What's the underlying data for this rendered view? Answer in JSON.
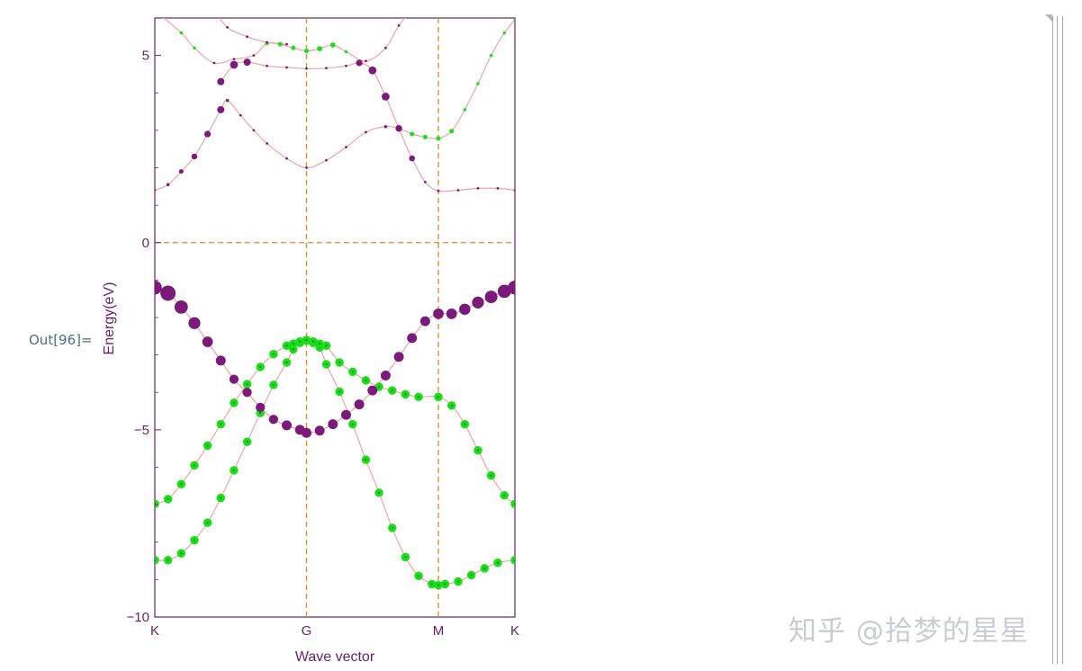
{
  "cell": {
    "output_label": "Out[96]="
  },
  "watermark": "知乎 @拾梦的星星",
  "colors": {
    "purple": "#7b1a7b",
    "green": "#16e016",
    "curve": "#f0a3a3",
    "guide": "#e08a2a",
    "axis": "#6a1e6a"
  },
  "chart_data": {
    "type": "scatter",
    "title": "",
    "xlabel": "Wave vector",
    "ylabel": "Energy(eV)",
    "ylim": [
      -10,
      6
    ],
    "xlim": [
      0,
      2.73
    ],
    "x_ticks": [
      {
        "x": 0,
        "label": "K"
      },
      {
        "x": 1.15,
        "label": "G"
      },
      {
        "x": 2.15,
        "label": "M"
      },
      {
        "x": 2.73,
        "label": "K"
      }
    ],
    "y_ticks": [
      {
        "y": 5,
        "label": "5"
      },
      {
        "y": 0,
        "label": "0"
      },
      {
        "y": -5,
        "label": "−5"
      },
      {
        "y": -10,
        "label": "−10"
      }
    ],
    "guides": {
      "vertical_x": [
        1.15,
        2.15
      ],
      "horizontal_y": [
        0
      ]
    },
    "grid": false,
    "legend": "none",
    "bands": [
      {
        "points": [
          [
            0,
            -8.48
          ],
          [
            0.1,
            -8.48
          ],
          [
            0.2,
            -8.3
          ],
          [
            0.3,
            -7.95
          ],
          [
            0.4,
            -7.48
          ],
          [
            0.5,
            -6.82
          ],
          [
            0.6,
            -6.08
          ],
          [
            0.7,
            -5.32
          ],
          [
            0.8,
            -4.55
          ],
          [
            0.9,
            -3.8
          ],
          [
            1.0,
            -3.2
          ],
          [
            1.05,
            -2.85
          ],
          [
            1.1,
            -2.68
          ],
          [
            1.15,
            -2.62
          ],
          [
            1.2,
            -2.68
          ],
          [
            1.25,
            -2.8
          ],
          [
            1.3,
            -3.25
          ],
          [
            1.4,
            -3.98
          ],
          [
            1.5,
            -4.85
          ],
          [
            1.6,
            -5.8
          ],
          [
            1.7,
            -6.68
          ],
          [
            1.8,
            -7.62
          ],
          [
            1.9,
            -8.4
          ],
          [
            2.0,
            -8.9
          ],
          [
            2.1,
            -9.12
          ],
          [
            2.15,
            -9.15
          ],
          [
            2.2,
            -9.12
          ],
          [
            2.3,
            -9.05
          ],
          [
            2.4,
            -8.88
          ],
          [
            2.5,
            -8.7
          ],
          [
            2.6,
            -8.55
          ],
          [
            2.73,
            -8.48
          ]
        ],
        "weights": [
          0.5,
          0.5,
          0.5,
          0.5,
          0.5,
          0.5,
          0.5,
          0.5,
          0.5,
          0.5,
          0.5,
          0.5,
          0.5,
          0.5,
          0.5,
          0.5,
          0.5,
          0.5,
          0.5,
          0.5,
          0.5,
          0.5,
          0.5,
          0.5,
          0.5,
          0.5,
          0.5,
          0.5,
          0.5,
          0.5,
          0.5,
          0.5
        ],
        "colors": [
          "g",
          "g",
          "g",
          "g",
          "g",
          "g",
          "g",
          "g",
          "g",
          "g",
          "g",
          "g",
          "g",
          "g",
          "g",
          "g",
          "g",
          "g",
          "g",
          "g",
          "g",
          "g",
          "g",
          "g",
          "g",
          "g",
          "g",
          "g",
          "g",
          "g",
          "g",
          "g"
        ]
      },
      {
        "points": [
          [
            0,
            -6.98
          ],
          [
            0.1,
            -6.85
          ],
          [
            0.2,
            -6.45
          ],
          [
            0.3,
            -5.95
          ],
          [
            0.4,
            -5.42
          ],
          [
            0.5,
            -4.85
          ],
          [
            0.6,
            -4.28
          ],
          [
            0.7,
            -3.78
          ],
          [
            0.8,
            -3.32
          ],
          [
            0.9,
            -2.98
          ],
          [
            1.0,
            -2.75
          ],
          [
            1.05,
            -2.7
          ],
          [
            1.1,
            -2.64
          ],
          [
            1.15,
            -2.6
          ],
          [
            1.2,
            -2.64
          ],
          [
            1.25,
            -2.7
          ],
          [
            1.3,
            -2.75
          ],
          [
            1.4,
            -3.2
          ],
          [
            1.5,
            -3.45
          ],
          [
            1.6,
            -3.68
          ],
          [
            1.7,
            -3.85
          ],
          [
            1.8,
            -3.95
          ],
          [
            1.9,
            -4.05
          ],
          [
            2.0,
            -4.12
          ],
          [
            2.15,
            -4.12
          ],
          [
            2.25,
            -4.35
          ],
          [
            2.35,
            -4.85
          ],
          [
            2.45,
            -5.55
          ],
          [
            2.55,
            -6.22
          ],
          [
            2.65,
            -6.75
          ],
          [
            2.73,
            -6.98
          ]
        ],
        "weights": [
          0.5,
          0.5,
          0.5,
          0.5,
          0.5,
          0.5,
          0.5,
          0.5,
          0.5,
          0.5,
          0.5,
          0.5,
          0.5,
          0.5,
          0.5,
          0.5,
          0.5,
          0.5,
          0.5,
          0.5,
          0.5,
          0.5,
          0.5,
          0.5,
          0.5,
          0.5,
          0.5,
          0.5,
          0.5,
          0.5,
          0.5
        ],
        "colors": [
          "g",
          "g",
          "g",
          "g",
          "g",
          "g",
          "g",
          "g",
          "g",
          "g",
          "g",
          "g",
          "g",
          "g",
          "g",
          "g",
          "g",
          "g",
          "g",
          "g",
          "g",
          "g",
          "g",
          "g",
          "g",
          "g",
          "g",
          "g",
          "g",
          "g",
          "g"
        ]
      },
      {
        "points": [
          [
            0,
            -1.2
          ],
          [
            0.1,
            -1.35
          ],
          [
            0.2,
            -1.72
          ],
          [
            0.3,
            -2.15
          ],
          [
            0.4,
            -2.65
          ],
          [
            0.5,
            -3.15
          ],
          [
            0.6,
            -3.65
          ],
          [
            0.7,
            -4.0
          ],
          [
            0.8,
            -4.4
          ],
          [
            0.9,
            -4.72
          ],
          [
            1.0,
            -4.88
          ],
          [
            1.1,
            -5.0
          ],
          [
            1.15,
            -5.08
          ],
          [
            1.25,
            -5.02
          ],
          [
            1.35,
            -4.85
          ],
          [
            1.45,
            -4.6
          ],
          [
            1.55,
            -4.32
          ],
          [
            1.65,
            -3.95
          ],
          [
            1.75,
            -3.55
          ],
          [
            1.85,
            -3.05
          ],
          [
            1.95,
            -2.55
          ],
          [
            2.05,
            -2.1
          ],
          [
            2.15,
            -1.9
          ],
          [
            2.25,
            -1.9
          ],
          [
            2.35,
            -1.78
          ],
          [
            2.45,
            -1.6
          ],
          [
            2.55,
            -1.45
          ],
          [
            2.65,
            -1.3
          ],
          [
            2.73,
            -1.2
          ]
        ],
        "weights": [
          0.9,
          1.0,
          0.85,
          0.75,
          0.65,
          0.6,
          0.55,
          0.55,
          0.55,
          0.55,
          0.6,
          0.6,
          0.6,
          0.6,
          0.6,
          0.6,
          0.6,
          0.6,
          0.6,
          0.6,
          0.6,
          0.6,
          0.65,
          0.65,
          0.7,
          0.75,
          0.8,
          0.85,
          0.9
        ],
        "colors": [
          "p",
          "p",
          "p",
          "p",
          "p",
          "p",
          "p",
          "p",
          "p",
          "p",
          "p",
          "p",
          "p",
          "p",
          "p",
          "p",
          "p",
          "p",
          "p",
          "p",
          "p",
          "p",
          "p",
          "p",
          "p",
          "p",
          "p",
          "p",
          "p"
        ]
      },
      {
        "points": [
          [
            0,
            1.4
          ],
          [
            0.1,
            1.55
          ],
          [
            0.2,
            1.9
          ],
          [
            0.3,
            2.3
          ],
          [
            0.4,
            2.9
          ],
          [
            0.5,
            3.55
          ],
          [
            0.55,
            3.8
          ],
          [
            0.65,
            3.4
          ],
          [
            0.75,
            3.0
          ],
          [
            0.85,
            2.65
          ],
          [
            1.0,
            2.25
          ],
          [
            1.15,
            2.0
          ],
          [
            1.3,
            2.2
          ],
          [
            1.45,
            2.55
          ],
          [
            1.6,
            2.95
          ],
          [
            1.75,
            3.1
          ],
          [
            1.85,
            3.05
          ],
          [
            1.95,
            2.9
          ],
          [
            2.05,
            2.82
          ],
          [
            2.15,
            2.78
          ],
          [
            2.25,
            2.98
          ],
          [
            2.35,
            3.55
          ],
          [
            2.45,
            4.25
          ],
          [
            2.55,
            5.0
          ],
          [
            2.65,
            5.6
          ],
          [
            2.73,
            5.95
          ]
        ],
        "weights": [
          0.05,
          0.1,
          0.2,
          0.3,
          0.35,
          0.4,
          0.1,
          0.05,
          0.05,
          0.05,
          0.05,
          0.05,
          0.05,
          0.05,
          0.05,
          0.1,
          0.35,
          0.2,
          0.2,
          0.2,
          0.2,
          0.1,
          0.1,
          0.1,
          0.1,
          0.1
        ],
        "colors": [
          "p",
          "p",
          "p",
          "p",
          "p",
          "p",
          "p",
          "p",
          "p",
          "p",
          "p",
          "p",
          "p",
          "p",
          "p",
          "p",
          "p",
          "g",
          "g",
          "g",
          "g",
          "g",
          "g",
          "g",
          "g",
          "g"
        ]
      },
      {
        "points": [
          [
            0.5,
            4.3
          ],
          [
            0.6,
            4.75
          ],
          [
            0.7,
            4.82
          ],
          [
            0.85,
            4.72
          ],
          [
            1.0,
            4.68
          ],
          [
            1.15,
            4.65
          ],
          [
            1.3,
            4.66
          ],
          [
            1.45,
            4.72
          ],
          [
            1.55,
            4.8
          ],
          [
            1.65,
            4.6
          ],
          [
            1.75,
            3.9
          ],
          [
            1.85,
            3.05
          ],
          [
            1.95,
            2.25
          ],
          [
            2.05,
            1.62
          ],
          [
            2.15,
            1.38
          ],
          [
            2.3,
            1.4
          ],
          [
            2.45,
            1.45
          ],
          [
            2.6,
            1.45
          ],
          [
            2.73,
            1.4
          ]
        ],
        "weights": [
          0.4,
          0.45,
          0.4,
          0.05,
          0.05,
          0.05,
          0.05,
          0.05,
          0.35,
          0.45,
          0.45,
          0.35,
          0.3,
          0.05,
          0.05,
          0.05,
          0.05,
          0.05,
          0.05
        ],
        "colors": [
          "p",
          "p",
          "p",
          "p",
          "p",
          "p",
          "p",
          "p",
          "p",
          "p",
          "p",
          "p",
          "p",
          "p",
          "p",
          "p",
          "p",
          "p",
          "p"
        ]
      },
      {
        "points": [
          [
            0,
            6.2
          ],
          [
            0.2,
            5.6
          ],
          [
            0.3,
            5.2
          ],
          [
            0.45,
            4.8
          ],
          [
            0.6,
            4.9
          ],
          [
            0.75,
            5.0
          ],
          [
            0.85,
            5.32
          ],
          [
            0.95,
            5.3
          ],
          [
            1.05,
            5.2
          ],
          [
            1.15,
            5.12
          ],
          [
            1.25,
            5.18
          ],
          [
            1.35,
            5.28
          ],
          [
            1.45,
            5.1
          ],
          [
            1.6,
            4.85
          ],
          [
            1.75,
            5.2
          ],
          [
            1.85,
            5.8
          ],
          [
            1.95,
            6.2
          ]
        ],
        "weights": [
          0.1,
          0.1,
          0.1,
          0.05,
          0.05,
          0.05,
          0.15,
          0.2,
          0.2,
          0.2,
          0.25,
          0.25,
          0.1,
          0.05,
          0.05,
          0.05,
          0.05
        ],
        "colors": [
          "g",
          "g",
          "g",
          "p",
          "p",
          "p",
          "g",
          "g",
          "g",
          "g",
          "g",
          "g",
          "g",
          "p",
          "p",
          "p",
          "p"
        ]
      },
      {
        "points": [
          [
            0.45,
            6.2
          ],
          [
            0.55,
            5.75
          ],
          [
            0.7,
            5.5
          ],
          [
            0.85,
            5.35
          ],
          [
            1.0,
            5.3
          ]
        ],
        "weights": [
          0.05,
          0.05,
          0.05,
          0.05,
          0.05
        ],
        "colors": [
          "p",
          "p",
          "p",
          "p",
          "p"
        ]
      }
    ]
  }
}
